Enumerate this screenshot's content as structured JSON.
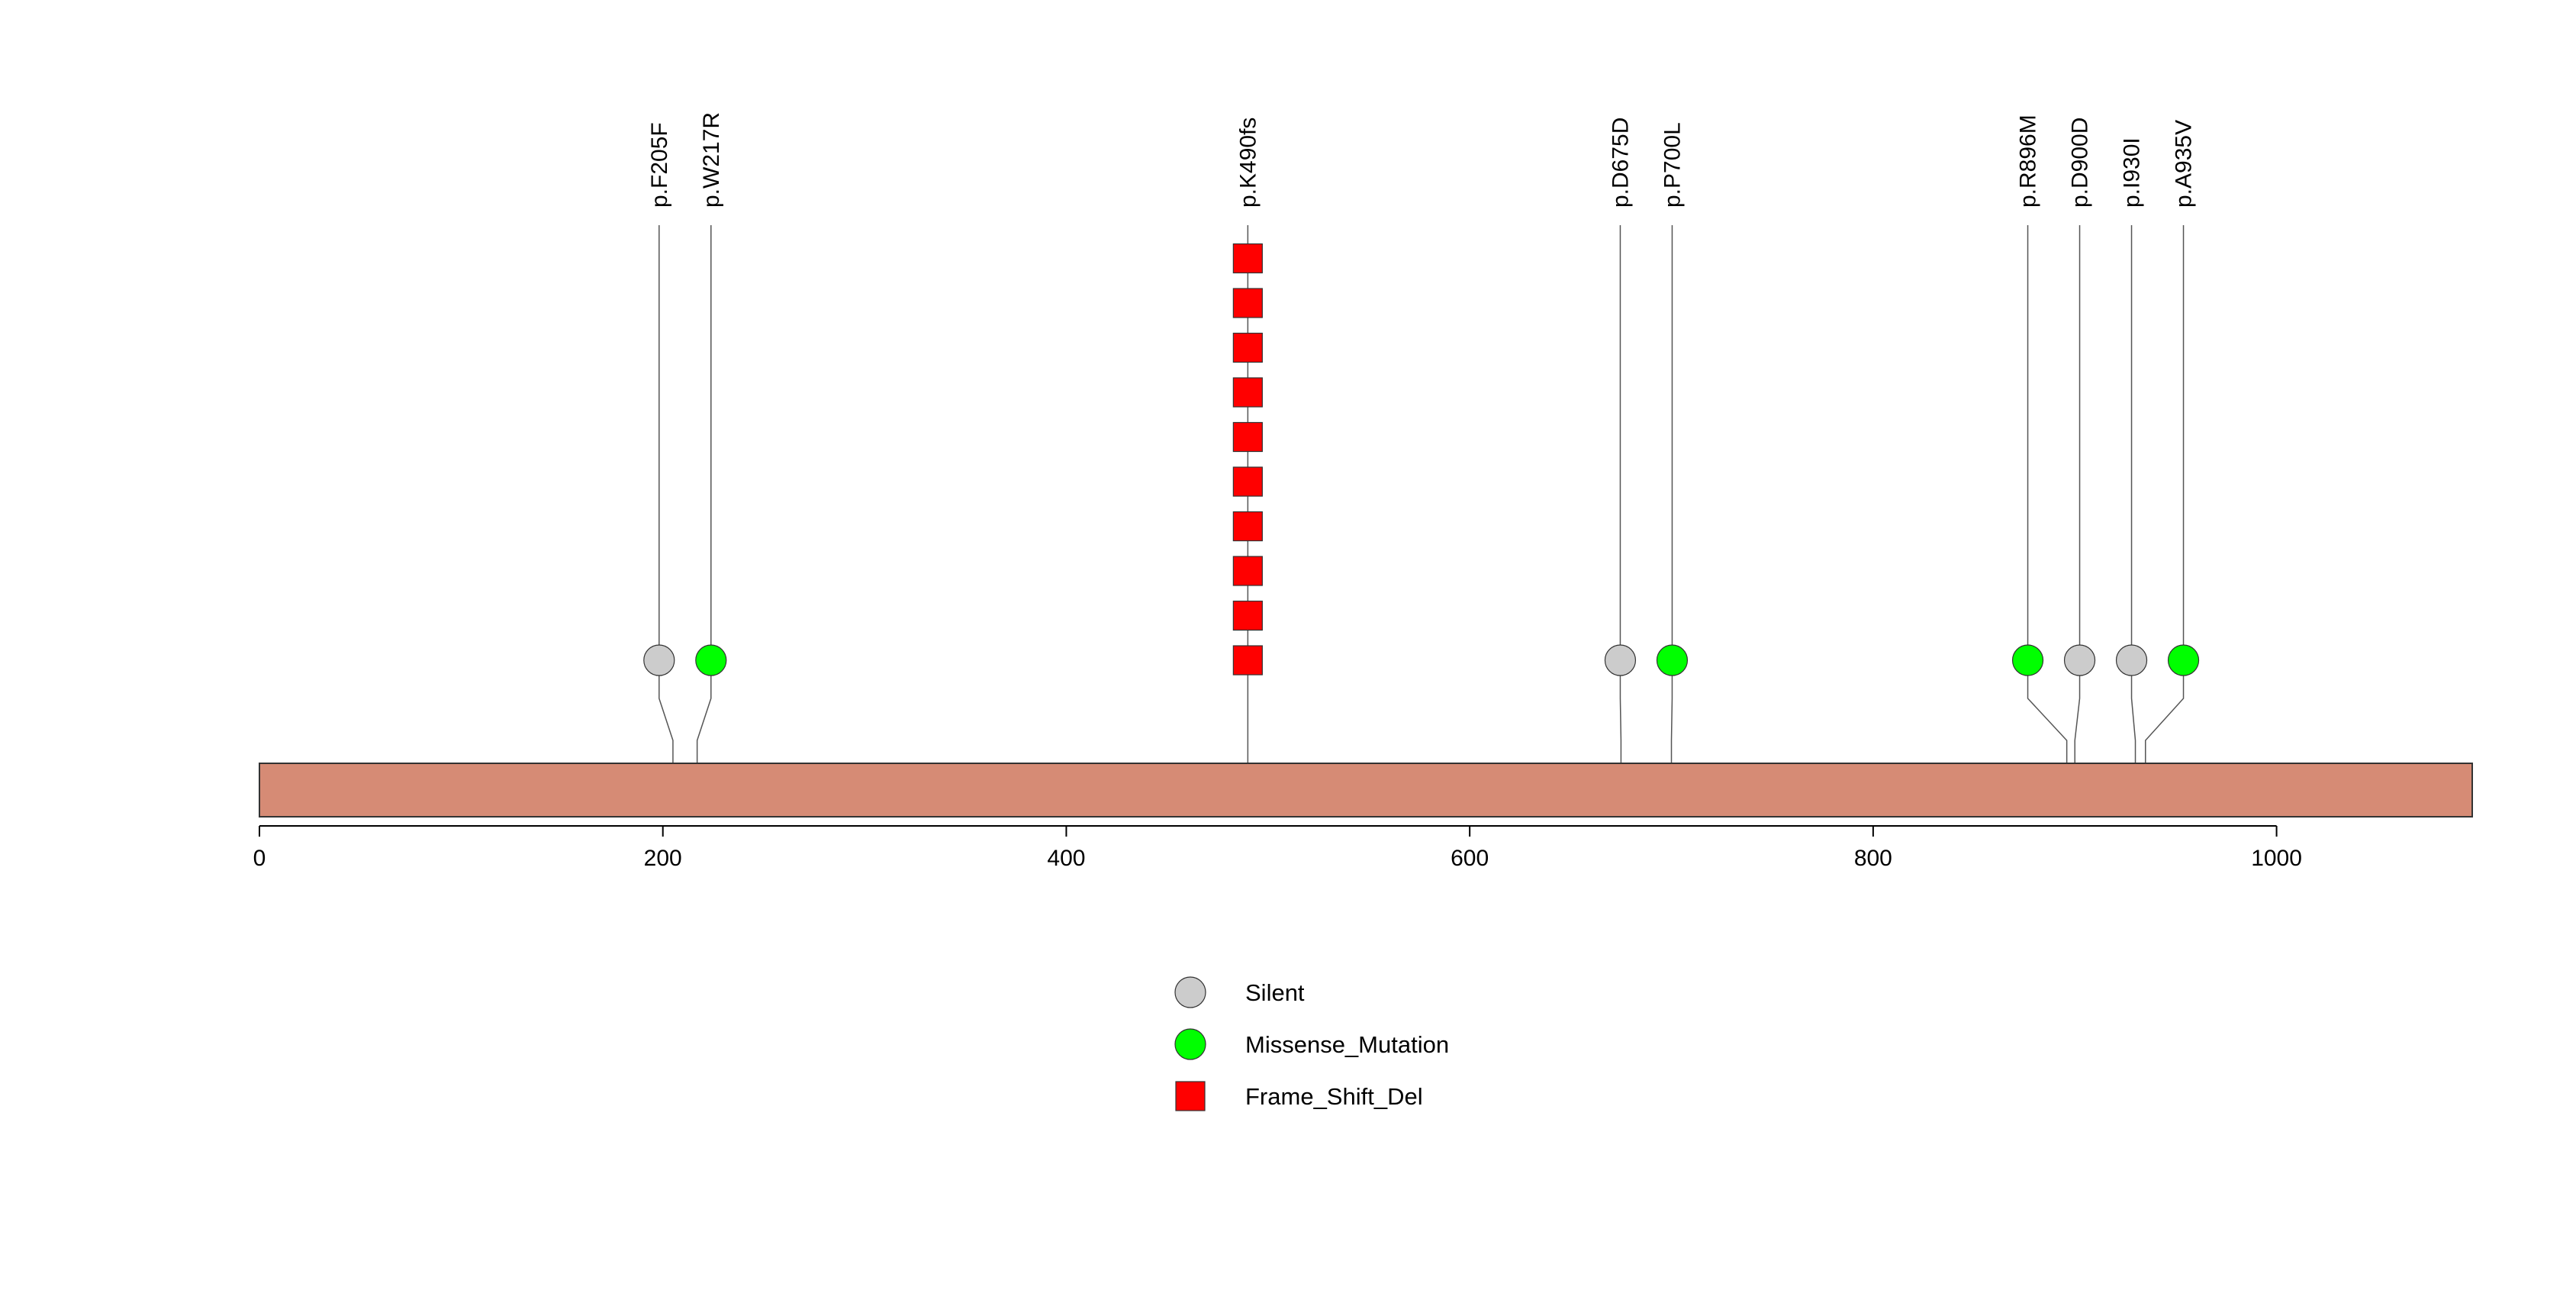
{
  "chart_data": {
    "type": "lollipop",
    "title": "",
    "xlabel": "",
    "ylabel": "",
    "xlim": [
      0,
      1097
    ],
    "x_ticks": [
      0,
      200,
      400,
      600,
      800,
      1000
    ],
    "protein_color": "#d68b75",
    "mutations": [
      {
        "label": "p.F205F",
        "position": 205,
        "type": "Silent",
        "count": 1
      },
      {
        "label": "p.W217R",
        "position": 217,
        "type": "Missense_Mutation",
        "count": 1
      },
      {
        "label": "p.K490fs",
        "position": 490,
        "type": "Frame_Shift_Del",
        "count": 10
      },
      {
        "label": "p.D675D",
        "position": 675,
        "type": "Silent",
        "count": 1
      },
      {
        "label": "p.P700L",
        "position": 700,
        "type": "Missense_Mutation",
        "count": 1
      },
      {
        "label": "p.R896M",
        "position": 896,
        "type": "Missense_Mutation",
        "count": 1
      },
      {
        "label": "p.D900D",
        "position": 900,
        "type": "Silent",
        "count": 1
      },
      {
        "label": "p.I930I",
        "position": 930,
        "type": "Silent",
        "count": 1
      },
      {
        "label": "p.A935V",
        "position": 935,
        "type": "Missense_Mutation",
        "count": 1
      }
    ],
    "legend": [
      {
        "label": "Silent",
        "shape": "circle",
        "color": "#cccccc"
      },
      {
        "label": "Missense_Mutation",
        "shape": "circle",
        "color": "#00ff00"
      },
      {
        "label": "Frame_Shift_Del",
        "shape": "square",
        "color": "#ff0000"
      }
    ],
    "type_colors": {
      "Silent": "#cccccc",
      "Missense_Mutation": "#00ff00",
      "Frame_Shift_Del": "#ff0000"
    }
  }
}
